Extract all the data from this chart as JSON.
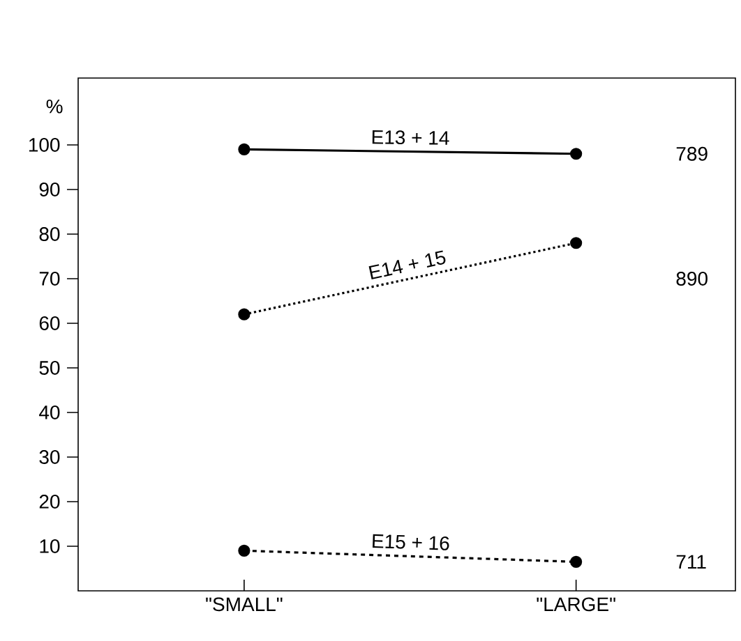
{
  "chart_data": {
    "type": "line",
    "ylabel": "%",
    "categories": [
      "\"SMALL\"",
      "\"LARGE\""
    ],
    "ylim": [
      0,
      115
    ],
    "yticks": [
      10,
      20,
      30,
      40,
      50,
      60,
      70,
      80,
      90,
      100
    ],
    "marker": "circle",
    "series": [
      {
        "name": "E13 + 14",
        "color": "#000000",
        "line_style": "solid",
        "values": [
          99,
          98
        ]
      },
      {
        "name": "E14 + 15",
        "color": "#000000",
        "line_style": "dotted",
        "values": [
          62,
          78
        ]
      },
      {
        "name": "E15 + 16",
        "color": "#000000",
        "line_style": "dashed",
        "values": [
          9,
          6.5
        ]
      }
    ],
    "annotations": [
      "789",
      "890",
      "711"
    ]
  }
}
